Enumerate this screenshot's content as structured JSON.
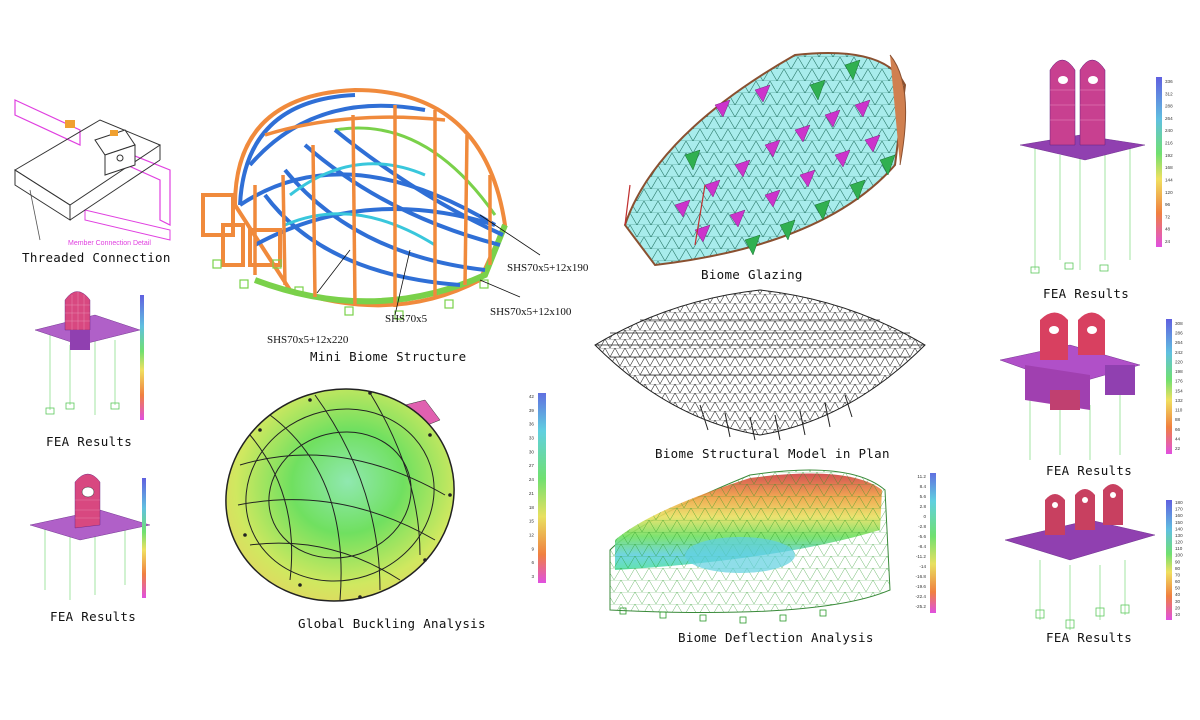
{
  "captions": {
    "threaded": "Threaded Connection",
    "fea1": "FEA Results",
    "fea2": "FEA Results",
    "mini": "Mini Biome Structure",
    "buckling": "Global Buckling Analysis",
    "glazing": "Biome Glazing",
    "plan": "Biome Structural Model in Plan",
    "deflection": "Biome Deflection Analysis",
    "fea3": "FEA Results",
    "fea4": "FEA Results",
    "fea5": "FEA Results"
  },
  "detail_note": "Member Connection Detail",
  "member_labels": {
    "a": "SHS70x5+12x190",
    "b": "SHS70x5+12x100",
    "c": "SHS70x5",
    "d": "SHS70x5+12x220"
  },
  "buckling_scale": [
    "42",
    "39",
    "36",
    "33",
    "30",
    "27",
    "24",
    "21",
    "18",
    "15",
    "12",
    "9",
    "6",
    "3"
  ],
  "deflection_scale": [
    "11.2",
    "8.4",
    "5.6",
    "2.8",
    "0",
    "-2.8",
    "-5.6",
    "-8.4",
    "-11.2",
    "-14",
    "-16.8",
    "-19.6",
    "-22.4",
    "-25.2"
  ],
  "fea_scale_a": [
    "336",
    "312",
    "288",
    "264",
    "240",
    "216",
    "192",
    "168",
    "144",
    "120",
    "96",
    "72",
    "48",
    "24"
  ],
  "fea_scale_b": [
    "308",
    "286",
    "264",
    "242",
    "220",
    "198",
    "176",
    "154",
    "132",
    "110",
    "88",
    "66",
    "44",
    "22"
  ],
  "fea_scale_c": [
    "180",
    "170",
    "160",
    "150",
    "140",
    "130",
    "120",
    "110",
    "100",
    "90",
    "80",
    "70",
    "60",
    "50",
    "40",
    "30",
    "20",
    "10"
  ],
  "colors": {
    "frame_blue": "#2f6fd6",
    "frame_orange": "#f08a3c",
    "green": "#7ad14a",
    "magenta": "#cc33cc"
  }
}
